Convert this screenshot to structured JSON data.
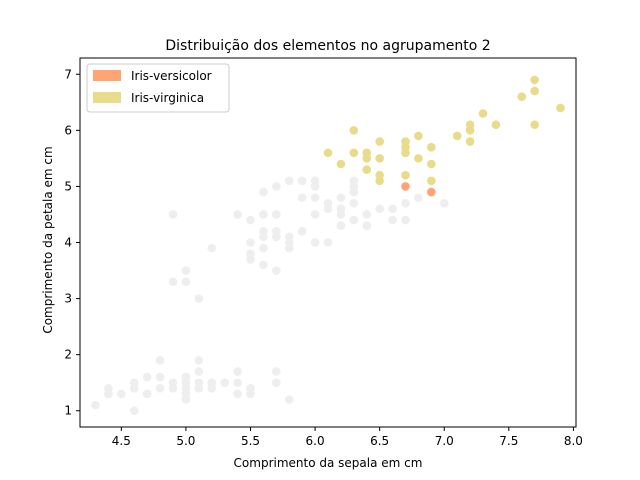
{
  "chart_data": {
    "type": "scatter",
    "title": "Distribuição dos elementos no agrupamento 2",
    "xlabel": "Comprimento da sepala em cm",
    "ylabel": "Comprimento da petala em cm",
    "xlim": [
      4.18,
      8.02
    ],
    "ylim": [
      0.71,
      7.29
    ],
    "xticks": [
      4.5,
      5.0,
      5.5,
      6.0,
      6.5,
      7.0,
      7.5,
      8.0
    ],
    "xtick_labels": [
      "4.5",
      "5.0",
      "5.5",
      "6.0",
      "6.5",
      "7.0",
      "7.5",
      "8.0"
    ],
    "yticks": [
      1,
      2,
      3,
      4,
      5,
      6,
      7
    ],
    "ytick_labels": [
      "1",
      "2",
      "3",
      "4",
      "5",
      "6",
      "7"
    ],
    "grid": false,
    "legend_position": "top-left",
    "series": [
      {
        "name": "",
        "color": "#eeeeee",
        "points": [
          [
            4.3,
            1.1
          ],
          [
            4.4,
            1.4
          ],
          [
            4.4,
            1.3
          ],
          [
            4.5,
            1.3
          ],
          [
            4.6,
            1.0
          ],
          [
            4.6,
            1.4
          ],
          [
            4.6,
            1.5
          ],
          [
            4.7,
            1.3
          ],
          [
            4.7,
            1.6
          ],
          [
            4.8,
            1.4
          ],
          [
            4.8,
            1.6
          ],
          [
            4.8,
            1.9
          ],
          [
            4.9,
            1.4
          ],
          [
            4.9,
            1.5
          ],
          [
            5.0,
            1.2
          ],
          [
            5.0,
            1.3
          ],
          [
            5.0,
            1.4
          ],
          [
            5.0,
            1.5
          ],
          [
            5.0,
            1.6
          ],
          [
            5.1,
            1.4
          ],
          [
            5.1,
            1.5
          ],
          [
            5.1,
            1.7
          ],
          [
            5.1,
            1.9
          ],
          [
            5.2,
            1.4
          ],
          [
            5.2,
            1.5
          ],
          [
            5.3,
            1.5
          ],
          [
            5.4,
            1.3
          ],
          [
            5.4,
            1.5
          ],
          [
            5.4,
            1.7
          ],
          [
            5.5,
            1.3
          ],
          [
            5.5,
            1.4
          ],
          [
            5.7,
            1.5
          ],
          [
            5.7,
            1.7
          ],
          [
            5.8,
            1.2
          ],
          [
            4.9,
            4.5
          ],
          [
            4.9,
            3.3
          ],
          [
            5.0,
            3.5
          ],
          [
            5.0,
            3.3
          ],
          [
            5.1,
            3.0
          ],
          [
            5.2,
            3.9
          ],
          [
            5.4,
            4.5
          ],
          [
            5.5,
            3.7
          ],
          [
            5.5,
            3.8
          ],
          [
            5.5,
            4.0
          ],
          [
            5.5,
            4.4
          ],
          [
            5.6,
            3.6
          ],
          [
            5.6,
            3.9
          ],
          [
            5.6,
            4.1
          ],
          [
            5.6,
            4.2
          ],
          [
            5.6,
            4.5
          ],
          [
            5.6,
            4.9
          ],
          [
            5.7,
            3.5
          ],
          [
            5.7,
            4.1
          ],
          [
            5.7,
            4.2
          ],
          [
            5.7,
            4.5
          ],
          [
            5.7,
            5.0
          ],
          [
            5.8,
            3.9
          ],
          [
            5.8,
            4.0
          ],
          [
            5.8,
            4.1
          ],
          [
            5.8,
            5.1
          ],
          [
            5.9,
            4.2
          ],
          [
            5.9,
            4.8
          ],
          [
            5.9,
            5.1
          ],
          [
            6.0,
            4.0
          ],
          [
            6.0,
            4.5
          ],
          [
            6.0,
            5.0
          ],
          [
            6.0,
            5.1
          ],
          [
            6.1,
            4.0
          ],
          [
            6.1,
            4.7
          ],
          [
            6.2,
            4.3
          ],
          [
            6.2,
            4.5
          ],
          [
            6.2,
            4.8
          ],
          [
            6.3,
            4.4
          ],
          [
            6.3,
            4.7
          ],
          [
            6.3,
            4.9
          ],
          [
            6.3,
            5.0
          ],
          [
            6.3,
            5.1
          ],
          [
            6.4,
            4.3
          ],
          [
            6.4,
            4.5
          ],
          [
            6.5,
            4.6
          ],
          [
            6.6,
            4.4
          ],
          [
            6.6,
            4.6
          ],
          [
            6.7,
            4.4
          ],
          [
            6.7,
            4.7
          ],
          [
            6.8,
            4.8
          ],
          [
            6.9,
            4.9
          ],
          [
            7.0,
            4.7
          ],
          [
            6.1,
            4.6
          ],
          [
            6.0,
            4.8
          ],
          [
            6.2,
            4.6
          ]
        ]
      },
      {
        "name": "Iris-versicolor",
        "color": "#ffa472",
        "points": [
          [
            6.7,
            5.0
          ],
          [
            6.9,
            4.9
          ]
        ]
      },
      {
        "name": "Iris-virginica",
        "color": "#e8dc8a",
        "points": [
          [
            6.1,
            5.6
          ],
          [
            6.2,
            5.4
          ],
          [
            6.3,
            6.0
          ],
          [
            6.3,
            5.6
          ],
          [
            6.4,
            5.6
          ],
          [
            6.4,
            5.5
          ],
          [
            6.4,
            5.3
          ],
          [
            6.5,
            5.8
          ],
          [
            6.5,
            5.5
          ],
          [
            6.5,
            5.2
          ],
          [
            6.5,
            5.1
          ],
          [
            6.7,
            5.8
          ],
          [
            6.7,
            5.7
          ],
          [
            6.7,
            5.6
          ],
          [
            6.7,
            5.2
          ],
          [
            6.8,
            5.9
          ],
          [
            6.8,
            5.5
          ],
          [
            6.9,
            5.7
          ],
          [
            6.9,
            5.4
          ],
          [
            6.9,
            5.1
          ],
          [
            7.1,
            5.9
          ],
          [
            7.2,
            6.1
          ],
          [
            7.2,
            6.0
          ],
          [
            7.2,
            5.8
          ],
          [
            7.3,
            6.3
          ],
          [
            7.4,
            6.1
          ],
          [
            7.6,
            6.6
          ],
          [
            7.7,
            6.9
          ],
          [
            7.7,
            6.7
          ],
          [
            7.7,
            6.1
          ],
          [
            7.9,
            6.4
          ]
        ]
      }
    ],
    "legend": [
      {
        "label": "Iris-versicolor",
        "color": "#ffa472"
      },
      {
        "label": "Iris-virginica",
        "color": "#e8dc8a"
      }
    ]
  }
}
